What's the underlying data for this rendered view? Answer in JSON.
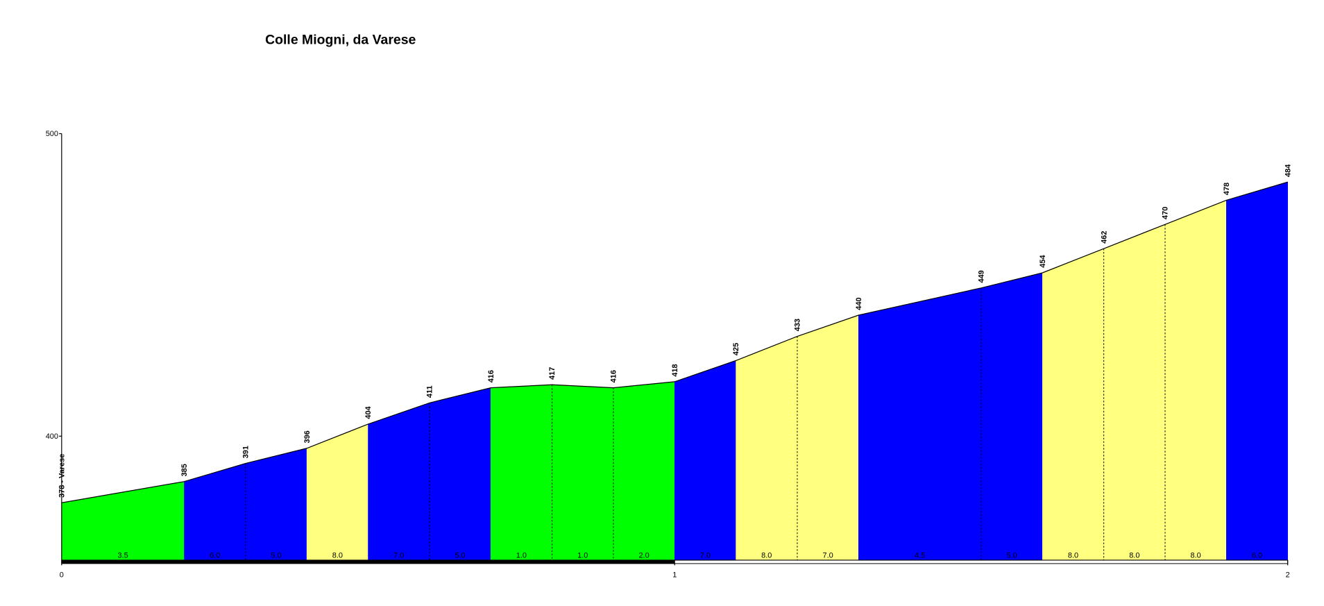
{
  "chart_data": {
    "type": "area",
    "title": "Colle Miogni, da Varese",
    "x": [
      0,
      0.2,
      0.3,
      0.4,
      0.5,
      0.6,
      0.7,
      0.8,
      0.9,
      1.0,
      1.1,
      1.2,
      1.3,
      1.5,
      1.6,
      1.7,
      1.8,
      1.9,
      2.0
    ],
    "series": [
      {
        "values": [
          378,
          385,
          391,
          396,
          404,
          411,
          416,
          417,
          416,
          418,
          425,
          433,
          440,
          449,
          454,
          462,
          470,
          478,
          484
        ],
        "value_labels": [
          "378 - Varese",
          "385",
          "391",
          "396",
          "404",
          "411",
          "416",
          "417",
          "416",
          "418",
          "425",
          "433",
          "440",
          "449",
          "454",
          "462",
          "470",
          "478",
          "484"
        ],
        "color": "#000000"
      }
    ],
    "segment_labels": [
      "3.5",
      "6.0",
      "5.0",
      "8.0",
      "7.0",
      "5.0",
      "1.0",
      "1.0",
      "2.0",
      "7.0",
      "8.0",
      "7.0",
      "4.5",
      "5.0",
      "8.0",
      "8.0",
      "8.0",
      "6.0"
    ],
    "segment_colors": [
      "#00ff00",
      "#0000ff",
      "#0000ff",
      "#ffff80",
      "#0000ff",
      "#0000ff",
      "#00ff00",
      "#00ff00",
      "#00ff00",
      "#0000ff",
      "#ffff80",
      "#ffff80",
      "#0000ff",
      "#0000ff",
      "#ffff80",
      "#ffff80",
      "#ffff80",
      "#0000ff"
    ],
    "xlim": [
      0,
      2
    ],
    "xticks": [
      0,
      1,
      2
    ],
    "ylim": [
      359,
      500
    ],
    "yticks": [
      400,
      500
    ]
  }
}
